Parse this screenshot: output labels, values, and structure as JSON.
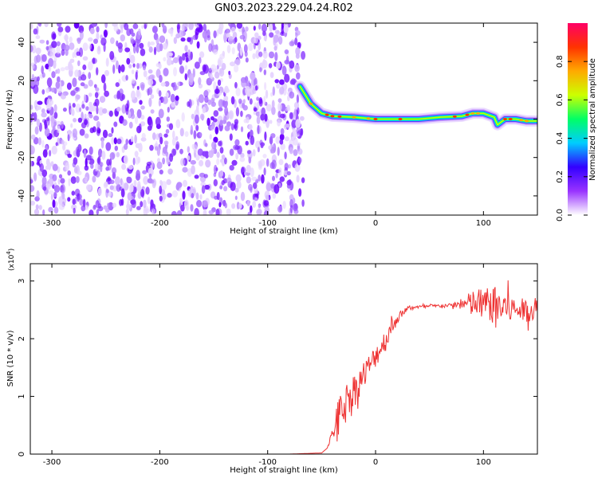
{
  "title": "GN03.2023.229.04.24.R02",
  "chart_data": [
    {
      "type": "heatmap",
      "xlabel": "Height of straight line (km)",
      "ylabel": "Frequency (Hz)",
      "xlim": [
        -320,
        150
      ],
      "ylim": [
        -50,
        50
      ],
      "x_ticks": [
        -300,
        -200,
        -100,
        0,
        100
      ],
      "y_ticks": [
        -40,
        -20,
        0,
        20,
        40
      ],
      "colorbar": {
        "label": "Normalized spectral amplitude",
        "range": [
          0,
          1
        ],
        "ticks": [
          0.0,
          0.2,
          0.4,
          0.6,
          0.8
        ],
        "colors": [
          "#ffffff",
          "#9933ff",
          "#3300ff",
          "#00ccff",
          "#00ff66",
          "#ccff00",
          "#ffaa00",
          "#ff3300",
          "#ff0066"
        ]
      },
      "noise_region": [
        -320,
        -67
      ],
      "ridge": [
        [
          -70,
          17
        ],
        [
          -60,
          8
        ],
        [
          -50,
          3
        ],
        [
          -40,
          1.5
        ],
        [
          -20,
          1
        ],
        [
          0,
          0
        ],
        [
          40,
          0
        ],
        [
          60,
          1
        ],
        [
          80,
          1.5
        ],
        [
          90,
          3
        ],
        [
          100,
          3
        ],
        [
          110,
          1
        ],
        [
          113,
          -3
        ],
        [
          120,
          0
        ],
        [
          130,
          0
        ],
        [
          140,
          -1
        ],
        [
          150,
          -1
        ]
      ]
    },
    {
      "type": "line",
      "xlabel": "Height of straight line (km)",
      "ylabel": "SNR (10 * v/v)",
      "ylabel_scale": "(x10",
      "ylabel_scale_exp": "4",
      "ylabel_scale_close": ")",
      "xlim": [
        -320,
        150
      ],
      "ylim": [
        0,
        3.3
      ],
      "x_ticks": [
        -300,
        -200,
        -100,
        0,
        100
      ],
      "y_ticks": [
        0,
        1,
        2,
        3
      ],
      "series": [
        {
          "color": "#ee3333",
          "x": [
            -320,
            -80,
            -50,
            -45,
            -40,
            -35,
            -30,
            -25,
            -20,
            -15,
            -10,
            -5,
            0,
            5,
            10,
            15,
            20,
            25,
            30,
            35,
            40,
            50,
            60,
            70,
            80,
            90,
            100,
            110,
            115,
            120,
            130,
            140,
            150
          ],
          "y": [
            0.0,
            0.0,
            0.02,
            0.1,
            0.35,
            0.65,
            0.85,
            1.0,
            1.1,
            1.25,
            1.4,
            1.55,
            1.7,
            1.85,
            2.0,
            2.2,
            2.35,
            2.45,
            2.52,
            2.55,
            2.55,
            2.56,
            2.57,
            2.58,
            2.6,
            2.6,
            2.6,
            2.6,
            2.55,
            2.55,
            2.5,
            2.5,
            2.5
          ],
          "noise": [
            0,
            0,
            0,
            0,
            0.1,
            0.3,
            0.3,
            0.3,
            0.3,
            0.25,
            0.25,
            0.2,
            0.2,
            0.2,
            0.2,
            0.15,
            0.1,
            0.05,
            0.03,
            0.03,
            0.03,
            0.03,
            0.03,
            0.03,
            0.1,
            0.25,
            0.3,
            0.3,
            0.4,
            0.3,
            0.2,
            0.2,
            0.2
          ]
        }
      ]
    }
  ]
}
